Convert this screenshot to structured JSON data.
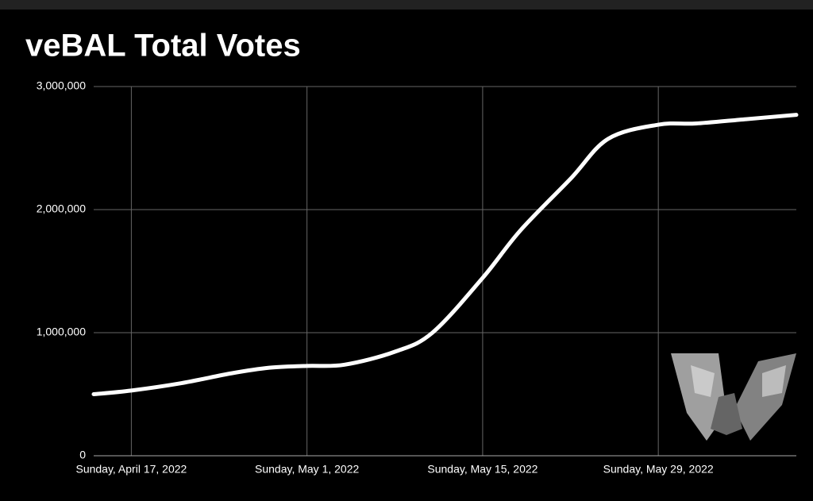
{
  "chart_data": {
    "type": "line",
    "title": "veBAL Total Votes",
    "x": [
      "2022-04-14",
      "2022-04-17",
      "2022-04-21",
      "2022-04-25",
      "2022-04-28",
      "2022-05-01",
      "2022-05-04",
      "2022-05-08",
      "2022-05-11",
      "2022-05-15",
      "2022-05-18",
      "2022-05-22",
      "2022-05-25",
      "2022-05-29",
      "2022-06-01",
      "2022-06-05",
      "2022-06-09"
    ],
    "series": [
      {
        "color": "#ffffff",
        "values": [
          500000,
          530000,
          590000,
          670000,
          715000,
          730000,
          740000,
          845000,
          1000000,
          1445000,
          1830000,
          2250000,
          2575000,
          2690000,
          2700000,
          2735000,
          2770000
        ]
      }
    ],
    "xlim": [
      "2022-04-14",
      "2022-06-09"
    ],
    "xticks": [
      {
        "value": "2022-04-17",
        "label": "Sunday, April 17, 2022"
      },
      {
        "value": "2022-05-01",
        "label": "Sunday, May 1, 2022"
      },
      {
        "value": "2022-05-15",
        "label": "Sunday, May 15, 2022"
      },
      {
        "value": "2022-05-29",
        "label": "Sunday, May 29, 2022"
      }
    ],
    "ylim": [
      0,
      3000000
    ],
    "yticks": [
      0,
      {
        "value": 1000000,
        "label": "1,000,000"
      },
      {
        "value": 2000000,
        "label": "2,000,000"
      },
      {
        "value": 3000000,
        "label": "3,000,000"
      }
    ],
    "grid": true
  }
}
